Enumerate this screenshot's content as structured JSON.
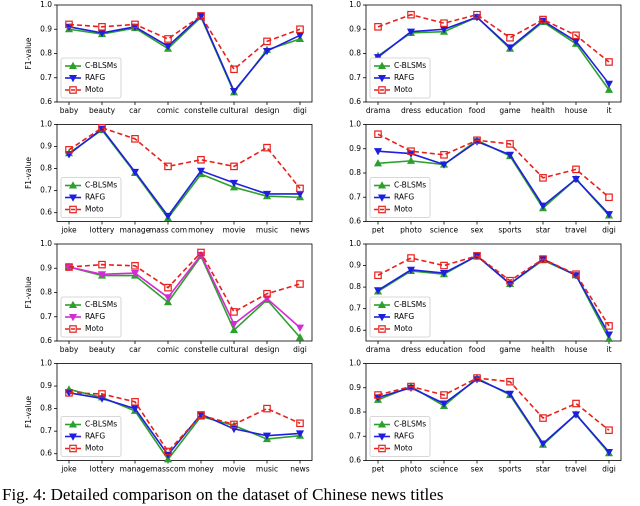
{
  "chart_data": [
    {
      "type": "line",
      "ylabel": "F1-value",
      "categories": [
        "baby",
        "beauty",
        "car",
        "comic",
        "constelle",
        "cultural",
        "design",
        "digi"
      ],
      "series": [
        {
          "name": "C-BLSMs",
          "color": "#2ca02c",
          "marker": "triangle-up",
          "linestyle": "solid",
          "values": [
            0.9,
            0.88,
            0.905,
            0.82,
            0.95,
            0.64,
            0.815,
            0.86
          ]
        },
        {
          "name": "RAFG",
          "color": "#1f1fe0",
          "marker": "triangle-down",
          "linestyle": "solid",
          "values": [
            0.91,
            0.885,
            0.91,
            0.83,
            0.955,
            0.645,
            0.81,
            0.875
          ]
        },
        {
          "name": "Moto",
          "color": "#e8201c",
          "marker": "square",
          "linestyle": "dashed",
          "values": [
            0.92,
            0.91,
            0.92,
            0.86,
            0.955,
            0.735,
            0.85,
            0.9
          ]
        }
      ],
      "ylim": [
        0.6,
        1.0
      ],
      "yticks": [
        0.6,
        0.7,
        0.8,
        0.9,
        {
          "value": 1,
          "label": "1.0"
        }
      ],
      "legend": "lower left"
    },
    {
      "type": "line",
      "categories": [
        "drama",
        "dress",
        "education",
        "food",
        "game",
        "health",
        "house",
        "it"
      ],
      "series": [
        {
          "name": "C-BLSMs",
          "color": "#2ca02c",
          "marker": "triangle-up",
          "linestyle": "solid",
          "values": [
            0.79,
            0.885,
            0.89,
            0.95,
            0.82,
            0.93,
            0.84,
            0.65
          ]
        },
        {
          "name": "RAFG",
          "color": "#1f1fe0",
          "marker": "triangle-down",
          "linestyle": "solid",
          "values": [
            0.785,
            0.89,
            0.9,
            0.95,
            0.825,
            0.935,
            0.85,
            0.675
          ]
        },
        {
          "name": "Moto",
          "color": "#e8201c",
          "marker": "square",
          "linestyle": "dashed",
          "values": [
            0.91,
            0.96,
            0.925,
            0.96,
            0.865,
            0.94,
            0.875,
            0.765
          ]
        }
      ],
      "ylim": [
        0.6,
        1.0
      ],
      "yticks": [
        0.6,
        0.7,
        0.8,
        0.9,
        {
          "value": 1,
          "label": "1.0"
        }
      ],
      "legend": "lower left"
    },
    {
      "type": "line",
      "ylabel": "F1-value",
      "categories": [
        "joke",
        "lottery",
        "manage",
        "mass com",
        "money",
        "movie",
        "music",
        "news"
      ],
      "series": [
        {
          "name": "C-BLSMs",
          "color": "#2ca02c",
          "marker": "triangle-up",
          "linestyle": "solid",
          "values": [
            0.87,
            0.975,
            0.78,
            0.575,
            0.775,
            0.715,
            0.675,
            0.67
          ]
        },
        {
          "name": "RAFG",
          "color": "#1f1fe0",
          "marker": "triangle-down",
          "linestyle": "solid",
          "values": [
            0.865,
            0.98,
            0.785,
            0.585,
            0.79,
            0.735,
            0.685,
            0.685
          ]
        },
        {
          "name": "Moto",
          "color": "#e8201c",
          "marker": "square",
          "linestyle": "dashed",
          "values": [
            0.885,
            0.985,
            0.935,
            0.81,
            0.84,
            0.81,
            0.895,
            0.71
          ]
        }
      ],
      "ylim": [
        0.56,
        1.0
      ],
      "yticks": [
        0.6,
        0.7,
        0.8,
        0.9,
        {
          "value": 1,
          "label": "1.0"
        }
      ],
      "legend": "lower left"
    },
    {
      "type": "line",
      "categories": [
        "pet",
        "photo",
        "science",
        "sex",
        "sports",
        "star",
        "travel",
        "digi"
      ],
      "series": [
        {
          "name": "C-BLSMs",
          "color": "#2ca02c",
          "marker": "triangle-up",
          "linestyle": "solid",
          "values": [
            0.84,
            0.85,
            0.835,
            0.935,
            0.87,
            0.655,
            0.775,
            0.625
          ]
        },
        {
          "name": "RAFG",
          "color": "#1f1fe0",
          "marker": "triangle-down",
          "linestyle": "solid",
          "values": [
            0.89,
            0.88,
            0.835,
            0.93,
            0.875,
            0.665,
            0.775,
            0.63
          ]
        },
        {
          "name": "Moto",
          "color": "#e8201c",
          "marker": "square",
          "linestyle": "dashed",
          "values": [
            0.96,
            0.89,
            0.875,
            0.935,
            0.92,
            0.78,
            0.815,
            0.7
          ]
        }
      ],
      "ylim": [
        0.6,
        1.0
      ],
      "yticks": [
        0.6,
        0.7,
        0.8,
        0.9,
        {
          "value": 1,
          "label": "1.0"
        }
      ],
      "legend": "lower left"
    },
    {
      "type": "line",
      "ylabel": "F1-value",
      "categories": [
        "baby",
        "beauty",
        "car",
        "comic",
        "constelle",
        "cultural",
        "design",
        "digi"
      ],
      "series": [
        {
          "name": "C-BLSMs",
          "color": "#2ca02c",
          "marker": "triangle-up",
          "linestyle": "solid",
          "values": [
            0.905,
            0.87,
            0.87,
            0.76,
            0.95,
            0.645,
            0.77,
            0.615
          ]
        },
        {
          "name": "RAFG",
          "color": "#d62ad6",
          "marker": "triangle-down",
          "linestyle": "solid",
          "values": [
            0.905,
            0.875,
            0.88,
            0.78,
            0.955,
            0.67,
            0.775,
            0.655
          ]
        },
        {
          "name": "Moto",
          "color": "#e8201c",
          "marker": "square",
          "linestyle": "dashed",
          "values": [
            0.905,
            0.915,
            0.91,
            0.82,
            0.965,
            0.72,
            0.795,
            0.835
          ]
        }
      ],
      "ylim": [
        0.6,
        1.0
      ],
      "yticks": [
        0.6,
        0.7,
        0.8,
        0.9,
        {
          "value": 1,
          "label": "1.0"
        }
      ],
      "legend": "lower left"
    },
    {
      "type": "line",
      "categories": [
        "drama",
        "dress",
        "education",
        "food",
        "game",
        "health",
        "house",
        "it"
      ],
      "series": [
        {
          "name": "C-BLSMs",
          "color": "#2ca02c",
          "marker": "triangle-up",
          "linestyle": "solid",
          "values": [
            0.78,
            0.875,
            0.86,
            0.945,
            0.815,
            0.925,
            0.855,
            0.56
          ]
        },
        {
          "name": "RAFG",
          "color": "#1f1fe0",
          "marker": "triangle-down",
          "linestyle": "solid",
          "values": [
            0.785,
            0.88,
            0.865,
            0.945,
            0.815,
            0.93,
            0.855,
            0.58
          ]
        },
        {
          "name": "Moto",
          "color": "#e8201c",
          "marker": "square",
          "linestyle": "dashed",
          "values": [
            0.855,
            0.935,
            0.9,
            0.945,
            0.83,
            0.93,
            0.86,
            0.62
          ]
        }
      ],
      "ylim": [
        0.55,
        1.0
      ],
      "yticks": [
        0.6,
        0.7,
        0.8,
        0.9,
        {
          "value": 1,
          "label": "1.0"
        }
      ],
      "legend": "lower left"
    },
    {
      "type": "line",
      "ylabel": "F1-value",
      "categories": [
        "joke",
        "lottery",
        "manage",
        "masscom",
        "money",
        "movie",
        "music",
        "news"
      ],
      "series": [
        {
          "name": "C-BLSMs",
          "color": "#2ca02c",
          "marker": "triangle-up",
          "linestyle": "solid",
          "values": [
            0.885,
            0.85,
            0.79,
            0.575,
            0.765,
            0.725,
            0.665,
            0.68
          ]
        },
        {
          "name": "RAFG",
          "color": "#1f1fe0",
          "marker": "triangle-down",
          "linestyle": "solid",
          "values": [
            0.87,
            0.845,
            0.8,
            0.595,
            0.775,
            0.71,
            0.68,
            0.69
          ]
        },
        {
          "name": "Moto",
          "color": "#e8201c",
          "marker": "square",
          "linestyle": "dashed",
          "values": [
            0.87,
            0.865,
            0.83,
            0.61,
            0.77,
            0.73,
            0.8,
            0.735
          ]
        }
      ],
      "ylim": [
        0.57,
        1.0
      ],
      "yticks": [
        0.6,
        0.7,
        0.8,
        0.9,
        {
          "value": 1,
          "label": "1.0"
        }
      ],
      "legend": "lower left"
    },
    {
      "type": "line",
      "categories": [
        "pet",
        "photo",
        "science",
        "sex",
        "sports",
        "star",
        "travel",
        "digi"
      ],
      "series": [
        {
          "name": "C-BLSMs",
          "color": "#2ca02c",
          "marker": "triangle-up",
          "linestyle": "solid",
          "values": [
            0.85,
            0.905,
            0.825,
            0.94,
            0.87,
            0.665,
            0.79,
            0.63
          ]
        },
        {
          "name": "RAFG",
          "color": "#1f1fe0",
          "marker": "triangle-down",
          "linestyle": "solid",
          "values": [
            0.86,
            0.9,
            0.835,
            0.935,
            0.875,
            0.67,
            0.79,
            0.635
          ]
        },
        {
          "name": "Moto",
          "color": "#e8201c",
          "marker": "square",
          "linestyle": "dashed",
          "values": [
            0.87,
            0.905,
            0.87,
            0.94,
            0.925,
            0.775,
            0.835,
            0.725
          ]
        }
      ],
      "ylim": [
        0.6,
        1.0
      ],
      "yticks": [
        0.6,
        0.7,
        0.8,
        0.9,
        {
          "value": 1,
          "label": "1.0"
        }
      ],
      "legend": "lower left"
    }
  ],
  "caption": "Fig. 4: Detailed comparison on the dataset of Chinese news titles"
}
